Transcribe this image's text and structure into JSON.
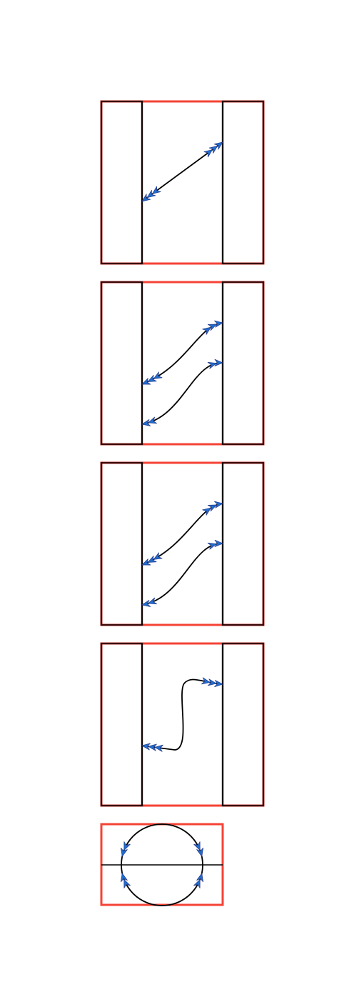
{
  "colors": {
    "background": "#ffffff",
    "frame_red": "#f44336",
    "frame_dark": "#3a0a0a",
    "line": "#000000",
    "arrow_fill": "#1e6fd0",
    "arrow_stroke": "#2a3f8f"
  },
  "panels": [
    {
      "name": "panel-1",
      "kind": "strip",
      "curves": [
        {
          "name": "straight-diagonal",
          "shape": "straight",
          "start_arrows": 3,
          "end_arrows": 3
        }
      ]
    },
    {
      "name": "panel-2",
      "kind": "strip",
      "curves": [
        {
          "name": "upper-s-curve",
          "shape": "s-curve",
          "start_arrows": 3,
          "end_arrows": 3
        },
        {
          "name": "lower-s-curve",
          "shape": "s-curve",
          "start_arrows": 2,
          "end_arrows": 2
        }
      ]
    },
    {
      "name": "panel-3",
      "kind": "strip",
      "curves": [
        {
          "name": "upper-s-curve",
          "shape": "s-curve",
          "start_arrows": 3,
          "end_arrows": 3
        },
        {
          "name": "lower-s-curve",
          "shape": "s-curve",
          "start_arrows": 2,
          "end_arrows": 2
        }
      ]
    },
    {
      "name": "panel-4",
      "kind": "strip",
      "curves": [
        {
          "name": "folded-curve",
          "shape": "fold",
          "start_arrows": 3,
          "end_arrows": 3
        }
      ]
    },
    {
      "name": "panel-5",
      "kind": "circle",
      "curves": [
        {
          "name": "circle-upper-arc",
          "shape": "arc",
          "start_arrows": 2,
          "end_arrows": 2
        },
        {
          "name": "circle-lower-arc",
          "shape": "arc",
          "start_arrows": 2,
          "end_arrows": 2
        }
      ]
    }
  ]
}
